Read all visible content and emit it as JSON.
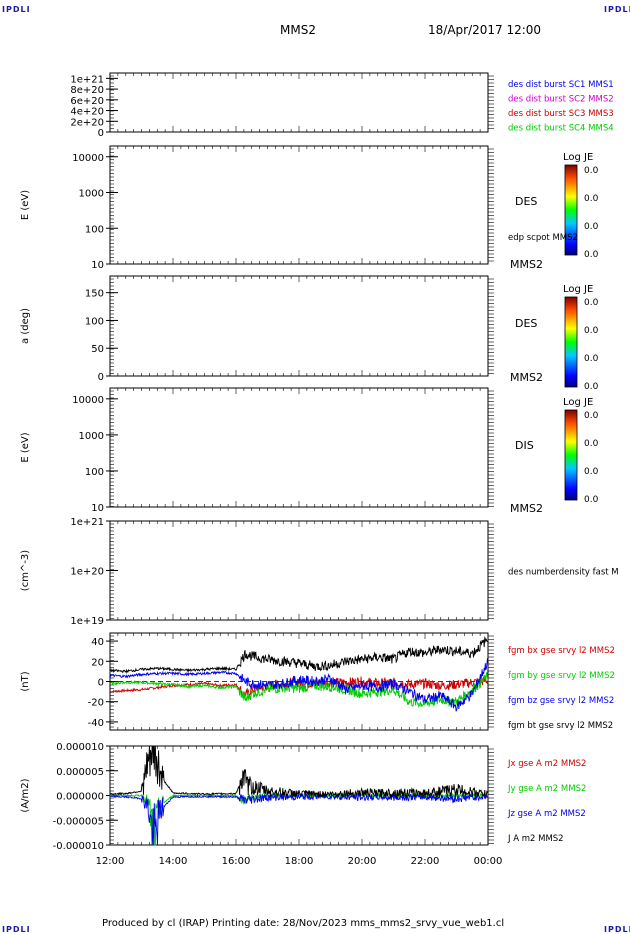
{
  "header": {
    "left_mark": "IPDLI",
    "right_mark": "IPDLI",
    "spacecraft": "MMS2",
    "date_time": "18/Apr/2017 12:00"
  },
  "footer": {
    "text": "Produced by cl (IRAP)   Printing date: 28/Nov/2023   mms_mms2_srvy_vue_web1.cl",
    "left_mark": "IPDLI",
    "right_mark": "IPDLI"
  },
  "time_axis": {
    "ticks": [
      "12:00",
      "14:00",
      "16:00",
      "18:00",
      "20:00",
      "22:00",
      "00:00"
    ],
    "range_hours": [
      0,
      12
    ]
  },
  "colorbar": {
    "title": "Log JE",
    "levels": [
      "0.0",
      "0.0",
      "0.0",
      "0.0"
    ]
  },
  "colors": {
    "red": "#cc0000",
    "magenta": "#d000d0",
    "green": "#00cc00",
    "blue": "#0000ee",
    "black": "#000000"
  },
  "chart_data": [
    {
      "type": "line",
      "panel": "dist-burst",
      "y_ticks": [
        "1e+21",
        "8e+20",
        "6e+20",
        "4e+20",
        "2e+20",
        "0"
      ],
      "ylim": [
        0,
        1.1e+21
      ],
      "ylabel": "",
      "legend": [
        {
          "name": "des dist burst SC1 MMS1",
          "color": "#0000ee"
        },
        {
          "name": "des dist burst SC2 MMS2",
          "color": "#d000d0"
        },
        {
          "name": "des dist burst SC3 MMS3",
          "color": "#cc0000"
        },
        {
          "name": "des dist burst SC4 MMS4",
          "color": "#00cc00"
        }
      ],
      "series": []
    },
    {
      "type": "heatmap",
      "panel": "des-energy",
      "scale": "log",
      "y_ticks": [
        "10000",
        "1000",
        "100",
        "10"
      ],
      "ylim": [
        10,
        20000
      ],
      "ylabel": "E (eV)",
      "label": "DES",
      "sublabel": "edp scpot MMS2",
      "spacecraft_label": "MMS2",
      "has_colorbar": true
    },
    {
      "type": "heatmap",
      "panel": "des-pitch",
      "y_ticks": [
        "150",
        "100",
        "50",
        "0"
      ],
      "ylim": [
        0,
        180
      ],
      "ylabel": "a (deg)",
      "label": "DES",
      "spacecraft_label": "MMS2",
      "has_colorbar": true
    },
    {
      "type": "heatmap",
      "panel": "dis-energy",
      "scale": "log",
      "y_ticks": [
        "10000",
        "1000",
        "100",
        "10"
      ],
      "ylim": [
        10,
        20000
      ],
      "ylabel": "E (eV)",
      "label": "DIS",
      "spacecraft_label": "MMS2",
      "has_colorbar": true
    },
    {
      "type": "line",
      "panel": "density",
      "scale": "log",
      "y_ticks": [
        "1e+21",
        "1e+20",
        "1e+19"
      ],
      "ylim": [
        1e+19,
        1e+21
      ],
      "ylabel": "(cm^-3)",
      "legend": [
        {
          "name": "des numberdensity fast M",
          "color": "#000000"
        }
      ],
      "series": []
    },
    {
      "type": "line",
      "panel": "fgm",
      "y_ticks": [
        "40",
        "20",
        "0",
        "-20",
        "-40"
      ],
      "ylim": [
        -48,
        48
      ],
      "ylabel": "(nT)",
      "legend": [
        {
          "name": "fgm bx gse srvy l2 MMS2",
          "color": "#cc0000"
        },
        {
          "name": "fgm by gse srvy l2 MMS2",
          "color": "#00cc00"
        },
        {
          "name": "fgm bz gse srvy l2 MMS2",
          "color": "#0000ee"
        },
        {
          "name": "fgm bt gse srvy l2 MMS2",
          "color": "#000000"
        }
      ],
      "x": [
        0,
        0.5,
        1,
        1.5,
        2,
        2.5,
        3,
        3.5,
        4,
        4.3,
        4.5,
        5,
        5.5,
        6,
        6.5,
        7,
        7.5,
        8,
        8.5,
        9,
        9.5,
        10,
        10.5,
        11,
        11.5,
        12
      ],
      "series": [
        {
          "name": "fgm bx gse srvy l2 MMS2",
          "values": [
            -10,
            -9,
            -8,
            -6,
            -4,
            -3,
            -2,
            -4,
            -3,
            -14,
            -8,
            -4,
            -2,
            -1,
            -2,
            -1,
            -1,
            0,
            -2,
            -1,
            -3,
            -2,
            -4,
            -3,
            -1,
            1
          ]
        },
        {
          "name": "fgm by gse srvy l2 MMS2",
          "values": [
            -2,
            -1,
            -1,
            -2,
            -3,
            -5,
            -4,
            -6,
            -5,
            -18,
            -12,
            -8,
            -6,
            -7,
            -4,
            -5,
            -8,
            -12,
            -10,
            -8,
            -20,
            -22,
            -18,
            -20,
            -8,
            5
          ]
        },
        {
          "name": "fgm bz gse srvy l2 MMS2",
          "values": [
            6,
            5,
            7,
            8,
            8,
            7,
            8,
            9,
            8,
            0,
            -2,
            -4,
            -2,
            2,
            0,
            3,
            -8,
            -4,
            -6,
            -2,
            -10,
            -18,
            -14,
            -25,
            -12,
            20
          ]
        },
        {
          "name": "fgm bt gse srvy l2 MMS2",
          "values": [
            11,
            10,
            12,
            13,
            12,
            11,
            12,
            13,
            12,
            28,
            25,
            22,
            20,
            18,
            15,
            16,
            20,
            22,
            24,
            22,
            30,
            28,
            32,
            30,
            28,
            42
          ]
        }
      ]
    },
    {
      "type": "line",
      "panel": "current",
      "y_ticks": [
        "0.000010",
        "0.000005",
        "0.000000",
        "-0.000005",
        "-0.000010"
      ],
      "ylim": [
        -1e-05,
        1e-05
      ],
      "ylabel": "(A/m2)",
      "legend": [
        {
          "name": "Jx gse A m2 MMS2",
          "color": "#cc0000"
        },
        {
          "name": "Jy gse A m2 MMS2",
          "color": "#00cc00"
        },
        {
          "name": "Jz gse A m2 MMS2",
          "color": "#0000ee"
        },
        {
          "name": "J A m2 MMS2",
          "color": "#000000"
        }
      ],
      "x": [
        0,
        0.5,
        1,
        1.2,
        1.4,
        1.6,
        2,
        3,
        4,
        4.2,
        4.4,
        5,
        6,
        7,
        8,
        8.5,
        9,
        10,
        11,
        11.5,
        12
      ],
      "series": [
        {
          "name": "Jy gse A m2 MMS2",
          "values": [
            0,
            0,
            0,
            -1e-06,
            -9e-06,
            -2e-06,
            0,
            0,
            0,
            -1e-06,
            -5e-07,
            0,
            0,
            0,
            0,
            0,
            0,
            0,
            0,
            0,
            0
          ]
        },
        {
          "name": "Jz gse A m2 MMS2",
          "values": [
            -2e-07,
            -3e-07,
            -6e-07,
            -2e-06,
            -9.5e-06,
            -3e-06,
            -3e-07,
            -2e-07,
            -3e-07,
            -1e-06,
            -8e-07,
            -4e-07,
            -3e-07,
            -2e-07,
            -4e-07,
            -3e-07,
            -4e-07,
            -3e-07,
            -6e-07,
            -4e-07,
            -2e-07
          ]
        },
        {
          "name": "J A m2 MMS2",
          "values": [
            3e-07,
            4e-07,
            9e-07,
            6e-06,
            1e-05,
            4e-06,
            5e-07,
            3e-07,
            4e-07,
            3.5e-06,
            2e-06,
            9e-07,
            4e-07,
            3e-07,
            6e-07,
            5e-07,
            6e-07,
            5e-07,
            1.2e-06,
            7e-07,
            3e-07
          ]
        }
      ]
    }
  ]
}
